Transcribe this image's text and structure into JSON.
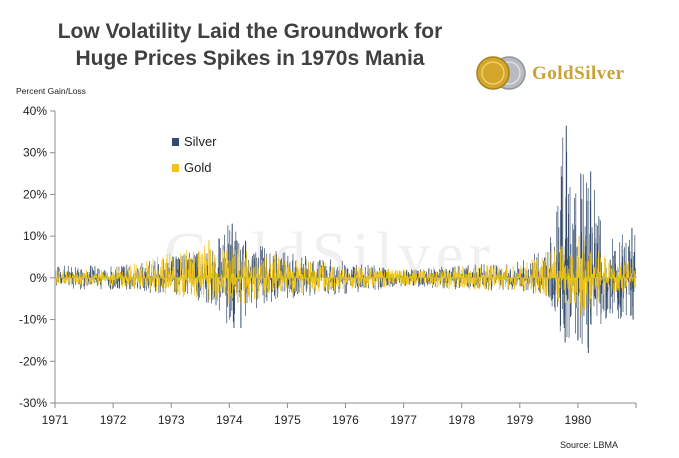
{
  "title_line1": "Low Volatility Laid the Groundwork for",
  "title_line2": "Huge Prices Spikes in 1970s Mania",
  "ylabel": "Percent Gain/Loss",
  "source": "Source:  LBMA",
  "logo": {
    "text": "GoldSilver",
    "gold_color": "#d4a72c",
    "silver_color": "#b8bcc2"
  },
  "watermark": "GoldSilver",
  "colors": {
    "silver": "#344b6b",
    "gold": "#f0c419",
    "axis": "#8c8c8c"
  },
  "chart_data": {
    "type": "bar",
    "title": "Low Volatility Laid the Groundwork for Huge Prices Spikes in 1970s Mania",
    "ylabel": "Percent Gain/Loss",
    "xlabel": "",
    "ylim": [
      -30,
      40
    ],
    "yticks": [
      40,
      30,
      20,
      10,
      0,
      -10,
      -20,
      -30
    ],
    "ytick_labels": [
      "40%",
      "30%",
      "20%",
      "10%",
      "0%",
      "-10%",
      "-20%",
      "-30%"
    ],
    "xlim": [
      1971,
      1981
    ],
    "xtick_labels": [
      "1971",
      "1972",
      "1973",
      "1974",
      "1975",
      "1976",
      "1977",
      "1978",
      "1979",
      "1980"
    ],
    "legend": {
      "placement": "upper-left",
      "entries": [
        "Silver",
        "Gold"
      ]
    },
    "grid": false,
    "frequency": "daily",
    "series": [
      {
        "name": "Silver",
        "envelope": [
          {
            "x": 1971.0,
            "lo": -3,
            "hi": 3
          },
          {
            "x": 1972.0,
            "lo": -3,
            "hi": 3
          },
          {
            "x": 1973.0,
            "lo": -4,
            "hi": 5
          },
          {
            "x": 1973.6,
            "lo": -6,
            "hi": 7
          },
          {
            "x": 1974.0,
            "lo": -12,
            "hi": 13
          },
          {
            "x": 1974.5,
            "lo": -7,
            "hi": 8
          },
          {
            "x": 1975.0,
            "lo": -5,
            "hi": 6
          },
          {
            "x": 1976.0,
            "lo": -4,
            "hi": 4
          },
          {
            "x": 1977.0,
            "lo": -2,
            "hi": 2
          },
          {
            "x": 1978.0,
            "lo": -3,
            "hi": 3
          },
          {
            "x": 1979.0,
            "lo": -3,
            "hi": 4
          },
          {
            "x": 1979.5,
            "lo": -5,
            "hi": 8
          },
          {
            "x": 1979.7,
            "lo": -15,
            "hi": 37
          },
          {
            "x": 1980.0,
            "lo": -15,
            "hi": 25
          },
          {
            "x": 1980.2,
            "lo": -18,
            "hi": 26
          },
          {
            "x": 1980.5,
            "lo": -10,
            "hi": 10
          },
          {
            "x": 1980.9,
            "lo": -10,
            "hi": 12
          }
        ],
        "spikes": [
          {
            "x": 1974.05,
            "value": 13
          },
          {
            "x": 1974.08,
            "value": -12
          },
          {
            "x": 1974.2,
            "value": -12
          },
          {
            "x": 1979.8,
            "value": 36.5
          },
          {
            "x": 1979.78,
            "value": -15.5
          },
          {
            "x": 1980.05,
            "value": 25
          },
          {
            "x": 1980.22,
            "value": 25.5
          },
          {
            "x": 1980.18,
            "value": -18
          },
          {
            "x": 1980.0,
            "value": -15
          },
          {
            "x": 1980.93,
            "value": 12
          },
          {
            "x": 1980.95,
            "value": -10
          }
        ]
      },
      {
        "name": "Gold",
        "envelope": [
          {
            "x": 1971.0,
            "lo": -2,
            "hi": 2
          },
          {
            "x": 1972.0,
            "lo": -2,
            "hi": 2
          },
          {
            "x": 1973.0,
            "lo": -4,
            "hi": 6
          },
          {
            "x": 1973.6,
            "lo": -6,
            "hi": 8
          },
          {
            "x": 1974.0,
            "lo": -7,
            "hi": 8
          },
          {
            "x": 1975.0,
            "lo": -4,
            "hi": 5
          },
          {
            "x": 1976.0,
            "lo": -3,
            "hi": 3
          },
          {
            "x": 1977.0,
            "lo": -2,
            "hi": 2
          },
          {
            "x": 1978.0,
            "lo": -3,
            "hi": 3
          },
          {
            "x": 1979.0,
            "lo": -3,
            "hi": 3
          },
          {
            "x": 1979.7,
            "lo": -6,
            "hi": 8
          },
          {
            "x": 1980.0,
            "lo": -9,
            "hi": 10
          },
          {
            "x": 1980.5,
            "lo": -5,
            "hi": 5
          },
          {
            "x": 1980.9,
            "lo": -4,
            "hi": 4
          }
        ],
        "spikes": [
          {
            "x": 1973.65,
            "value": 9
          },
          {
            "x": 1980.02,
            "value": 10
          },
          {
            "x": 1980.05,
            "value": -9
          }
        ]
      }
    ]
  }
}
